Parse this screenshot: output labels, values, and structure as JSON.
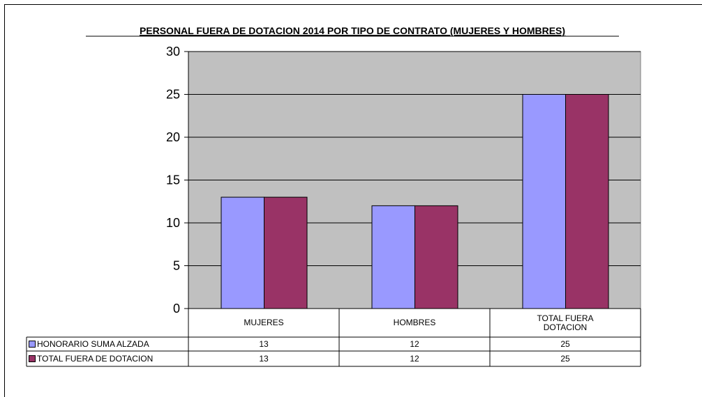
{
  "chart_data": {
    "type": "bar",
    "title": "PERSONAL FUERA DE DOTACION 2014 POR TIPO DE CONTRATO (MUJERES Y HOMBRES)",
    "categories": [
      "MUJERES",
      "HOMBRES",
      "TOTAL FUERA DOTACION"
    ],
    "series": [
      {
        "name": "HONORARIO SUMA ALZADA",
        "color": "#9999ff",
        "values": [
          13,
          12,
          25
        ]
      },
      {
        "name": "TOTAL FUERA DE DOTACION",
        "color": "#993366",
        "values": [
          13,
          12,
          25
        ]
      }
    ],
    "ylim": [
      0,
      30
    ],
    "yticks": [
      0,
      5,
      10,
      15,
      20,
      25,
      30
    ],
    "grid": true
  }
}
